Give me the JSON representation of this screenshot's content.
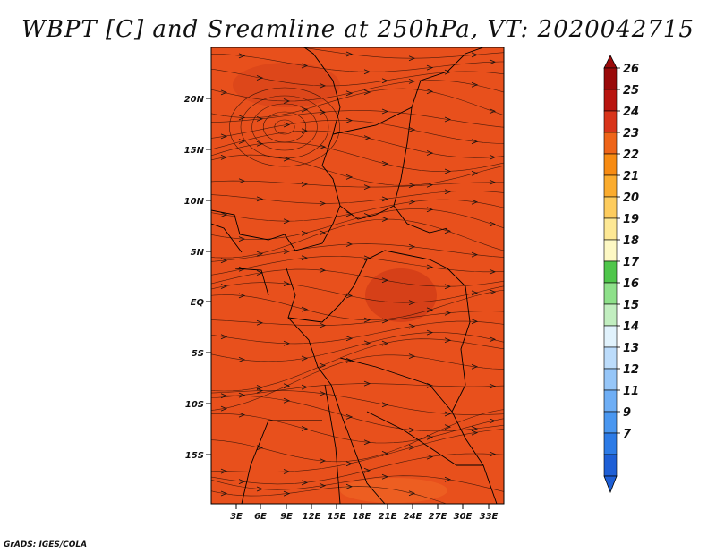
{
  "title": "WBPT [C] and Sreamline at 250hPa, VT: 2020042715",
  "credit": "GrADS: IGES/COLA",
  "map": {
    "field": "WBPT",
    "units": "C",
    "level": "250hPa",
    "valid_time": "2020042715",
    "base_color": "#e8501c",
    "warm_patch_color": "#d23d18",
    "cool_patch_color": "#f06424",
    "latitude_labels": [
      "20N",
      "15N",
      "10N",
      "5N",
      "EQ",
      "5S",
      "10S",
      "15S"
    ],
    "longitude_labels": [
      "3E",
      "6E",
      "9E",
      "12E",
      "15E",
      "18E",
      "21E",
      "24E",
      "27E",
      "30E",
      "33E"
    ]
  },
  "colorbar": {
    "labels": [
      "7",
      "9",
      "11",
      "12",
      "13",
      "14",
      "15",
      "16",
      "17",
      "18",
      "19",
      "20",
      "21",
      "22",
      "23",
      "24",
      "25",
      "26"
    ],
    "colors": [
      "#1e5fd6",
      "#2d7be6",
      "#4a97f0",
      "#6eaef5",
      "#96c6f8",
      "#bcdcfb",
      "#e1f2fc",
      "#c2eec0",
      "#8ee08a",
      "#4fc64b",
      "#fdf8c4",
      "#fde895",
      "#fdcc5e",
      "#fbac2e",
      "#f78b12",
      "#ee6418",
      "#d8341a",
      "#b8140f",
      "#9a0a0a"
    ]
  }
}
